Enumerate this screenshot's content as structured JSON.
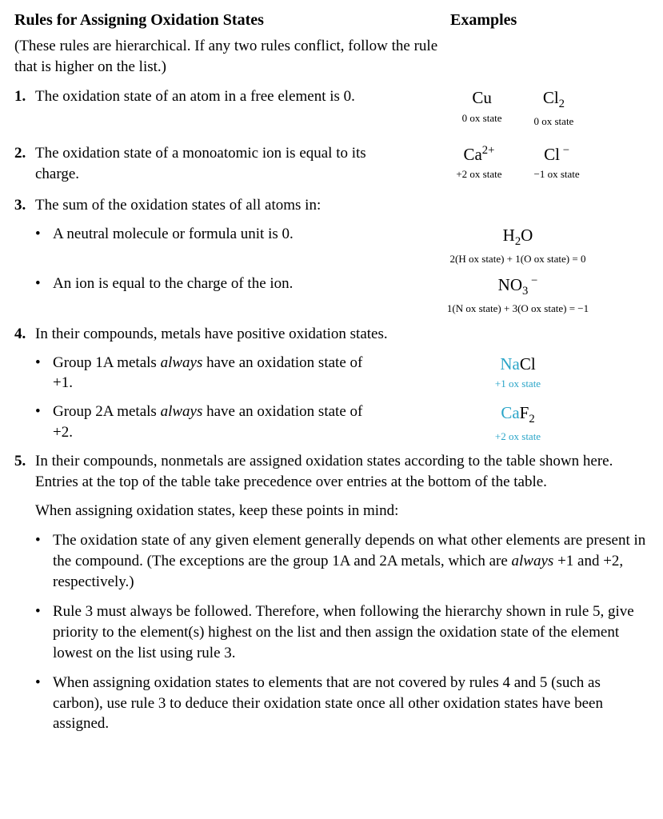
{
  "header": {
    "left": "Rules for Assigning Oxidation States",
    "right": "Examples"
  },
  "preamble": "(These rules are hierarchical. If any two rules conflict, follow the rule that is higher on the list.)",
  "rule1": {
    "num": "1.",
    "text": "The oxidation state of an atom in a free element is 0.",
    "ex1_formula": "Cu",
    "ex1_state": "0 ox state",
    "ex2_formula_html": "Cl<sub>2</sub>",
    "ex2_state": "0 ox state"
  },
  "rule2": {
    "num": "2.",
    "text": "The oxidation state of a monoatomic ion is equal to its charge.",
    "ex1_formula_html": "Ca<sup>2+</sup>",
    "ex1_state": "+2 ox state",
    "ex2_formula_html": "Cl<sup>&nbsp;&minus;</sup>",
    "ex2_state": "−1 ox state"
  },
  "rule3": {
    "num": "3.",
    "text": "The sum of the oxidation states of all atoms in:",
    "sub1_text": "A neutral molecule or formula unit is 0.",
    "sub1_formula_html": "H<sub>2</sub>O",
    "sub1_eq": "2(H ox state) + 1(O ox state) = 0",
    "sub2_text": "An ion is equal to the charge of the ion.",
    "sub2_formula_html": "NO<sub>3</sub><sup>&nbsp;&minus;</sup>",
    "sub2_eq": "1(N ox state) + 3(O ox state) = −1"
  },
  "rule4": {
    "num": "4.",
    "text": "In their compounds, metals have positive oxidation states.",
    "sub1_pre": "Group 1A metals ",
    "sub1_em": "always",
    "sub1_post": " have an oxidation state of +1.",
    "sub1_formula_cyan": "Na",
    "sub1_formula_rest": "Cl",
    "sub1_state": "+1 ox state",
    "sub2_pre": "Group 2A metals ",
    "sub2_em": "always",
    "sub2_post": " have an oxidation state of +2.",
    "sub2_formula_cyan": "Ca",
    "sub2_formula_rest_html": "F<sub>2</sub>",
    "sub2_state": "+2 ox state"
  },
  "rule5": {
    "num": "5.",
    "text": "In their compounds, nonmetals are assigned oxidation states according to the table shown here. Entries at the top of the table take precedence over entries at the bottom of the table.",
    "intro": "When assigning oxidation states, keep these points in mind:",
    "p1_pre": "The oxidation state of any given element generally depends on what other elements are present in the compound. (The exceptions are the group 1A and 2A metals, which are ",
    "p1_em": "always",
    "p1_post": " +1 and +2, respectively.)",
    "p2": "Rule 3 must always be followed. Therefore, when following the hierarchy shown in rule 5, give priority to the element(s) highest on the list and then assign the oxidation state of the element lowest on the list using rule 3.",
    "p3": "When assigning oxidation states to elements that are not covered by rules 4 and 5 (such as carbon), use rule 3 to deduce their oxidation state once all other oxidation states have been assigned."
  },
  "colors": {
    "cyan": "#2aa5c8",
    "text": "#000000",
    "bg": "#ffffff"
  }
}
